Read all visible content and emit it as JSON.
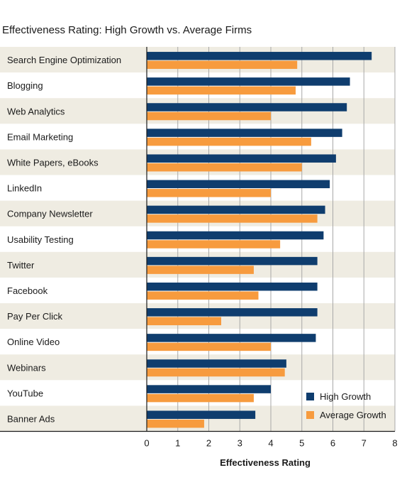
{
  "chart_data": {
    "type": "bar",
    "orientation": "horizontal",
    "title": "Effectiveness Rating: High Growth vs. Average Firms",
    "xlabel": "Effectiveness Rating",
    "ylabel": "",
    "xlim": [
      0,
      8
    ],
    "xticks": [
      0,
      1,
      2,
      3,
      4,
      5,
      6,
      7,
      8
    ],
    "grid": "vertical",
    "legend_position": "bottom-right",
    "categories": [
      "Search Engine Optimization",
      "Blogging",
      "Web Analytics",
      "Email Marketing",
      "White Papers, eBooks",
      "LinkedIn",
      "Company Newsletter",
      "Usability Testing",
      "Twitter",
      "Facebook",
      "Pay Per Click",
      "Online Video",
      "Webinars",
      "YouTube",
      "Banner Ads"
    ],
    "series": [
      {
        "name": "High Growth",
        "color": "#0f3d6e",
        "values": [
          7.25,
          6.55,
          6.45,
          6.3,
          6.1,
          5.9,
          5.75,
          5.7,
          5.5,
          5.5,
          5.5,
          5.45,
          4.5,
          4.0,
          3.5
        ]
      },
      {
        "name": "Average Growth",
        "color": "#f79b3e",
        "values": [
          4.85,
          4.8,
          4.0,
          5.3,
          5.0,
          4.0,
          5.5,
          4.3,
          3.45,
          3.6,
          2.4,
          4.0,
          4.45,
          3.45,
          1.85
        ]
      }
    ],
    "band_color": "#efece2",
    "grid_color": "#a8a8a8"
  }
}
